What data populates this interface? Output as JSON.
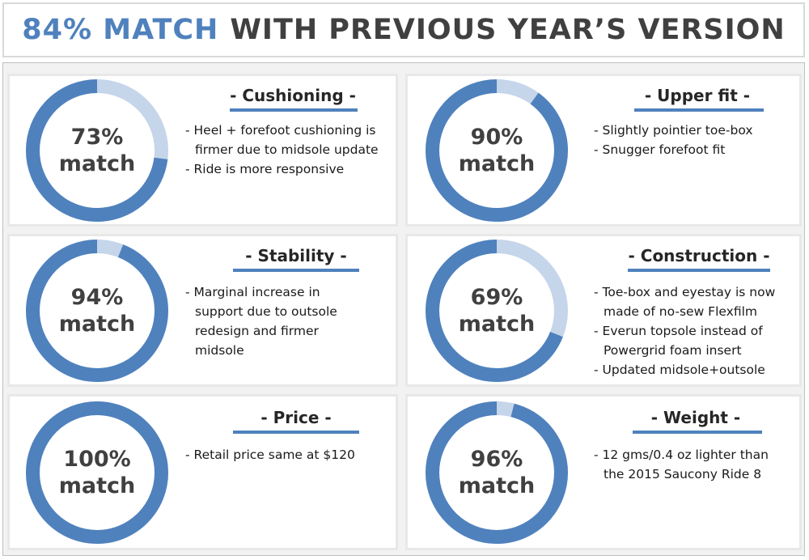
{
  "title": {
    "accent": "84% MATCH",
    "rest": "WITH PREVIOUS YEAR’S VERSION"
  },
  "colors": {
    "ring_fill": "#4f81bd",
    "ring_rest": "#c5d5ea",
    "heading_underline": "#4f81bd"
  },
  "panels": [
    {
      "heading": "- Cushioning -",
      "match_pct": 73,
      "ring_line1": "73%",
      "ring_line2": "match",
      "bullets": [
        "- Heel + forefoot cushioning is firmer due to midsole update",
        "- Ride is more responsive"
      ]
    },
    {
      "heading": "- Upper fit -",
      "match_pct": 90,
      "ring_line1": "90%",
      "ring_line2": "match",
      "bullets": [
        "- Slightly pointier toe-box",
        "- Snugger forefoot fit"
      ]
    },
    {
      "heading": "- Stability -",
      "match_pct": 94,
      "ring_line1": "94%",
      "ring_line2": "match",
      "bullets": [
        "- Marginal increase in support due to outsole redesign and firmer midsole"
      ]
    },
    {
      "heading": "- Construction -",
      "match_pct": 69,
      "ring_line1": "69%",
      "ring_line2": "match",
      "bullets": [
        "- Toe-box and eyestay is now made of no-sew Flexfilm",
        "- Everun topsole instead of Powergrid foam insert",
        "- Updated midsole+outsole"
      ]
    },
    {
      "heading": "- Price -",
      "match_pct": 100,
      "ring_line1": "100%",
      "ring_line2": "match",
      "bullets": [
        "-  Retail price same at $120"
      ]
    },
    {
      "heading": "- Weight -",
      "match_pct": 96,
      "ring_line1": "96%",
      "ring_line2": "match",
      "bullets": [
        "- 12 gms/0.4 oz lighter than the 2015 Saucony Ride 8"
      ]
    }
  ]
}
